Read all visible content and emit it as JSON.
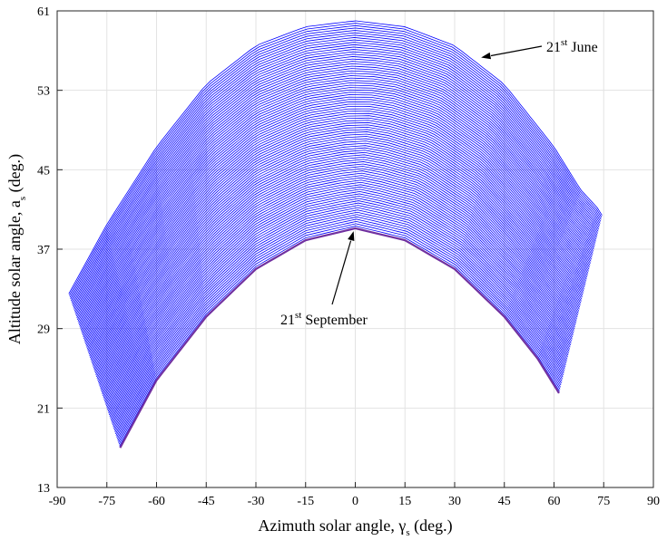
{
  "chart_data": {
    "type": "line",
    "title": "",
    "xlabel": "Azimuth solar angle, γ",
    "xlabel_sub": "s",
    "xlabel_suffix": " (deg.)",
    "ylabel": "Altitude solar angle, a",
    "ylabel_sub": "s",
    "ylabel_suffix": "  (deg.)",
    "xlim": [
      -90,
      90
    ],
    "ylim": [
      13,
      61
    ],
    "xticks": [
      -90,
      -75,
      -60,
      -45,
      -30,
      -15,
      0,
      15,
      30,
      45,
      60,
      75,
      90
    ],
    "yticks": [
      13,
      21,
      29,
      37,
      45,
      53,
      61
    ],
    "grid": true,
    "legend": "none",
    "series_family": {
      "count": 90,
      "color": "#0000ff",
      "last_color": "#7030a0",
      "first": {
        "name": "21st June",
        "x": [
          -86.5,
          -75,
          -60,
          -45,
          -30,
          -15,
          0,
          15,
          30,
          45,
          60,
          68,
          73,
          74.5
        ],
        "y": [
          32.5,
          39.5,
          47.3,
          53.6,
          57.5,
          59.4,
          60.0,
          59.4,
          57.5,
          53.6,
          47.3,
          43.0,
          41.2,
          40.4
        ]
      },
      "last": {
        "name": "21st September",
        "x": [
          -71,
          -60,
          -45,
          -30,
          -15,
          0,
          15,
          30,
          45,
          55,
          61.5
        ],
        "y": [
          17.0,
          23.8,
          30.2,
          35.0,
          37.9,
          39.1,
          37.9,
          35.0,
          30.2,
          26.0,
          22.5
        ]
      }
    },
    "annotations": [
      {
        "base": "21",
        "sup": "st",
        "text": " June",
        "points_to": [
          38,
          56.3
        ]
      },
      {
        "base": "21",
        "sup": "st",
        "text": " September",
        "points_to": [
          -0.5,
          39.0
        ]
      }
    ]
  }
}
